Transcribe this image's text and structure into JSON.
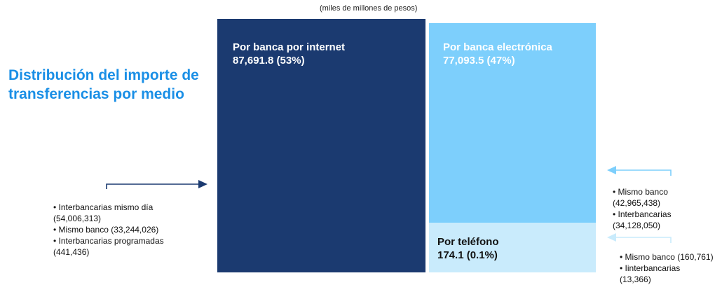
{
  "chart_data": {
    "type": "treemap",
    "title": "Distribución del importe de transferencias por medio",
    "subtitle": "(miles de millones de pesos)",
    "blocks": [
      {
        "key": "internet",
        "name": "Por banca por internet",
        "value": 87691.8,
        "value_label": "87,691.8",
        "share_label": "(53%)"
      },
      {
        "key": "electronica",
        "name": "Por banca electrónica",
        "value": 77093.5,
        "value_label": "77,093.5",
        "share_label": "(47%)"
      },
      {
        "key": "telefono",
        "name": "Por teléfono",
        "value": 174.1,
        "value_label": "174.1",
        "share_label": "(0.1%)"
      }
    ],
    "breakdowns": {
      "internet": [
        {
          "label": "Interbancarias mismo día",
          "value": 54006313,
          "display": "(54,006,313)"
        },
        {
          "label": "Mismo banco",
          "value": 33244026,
          "display": "(33,244,026)"
        },
        {
          "label": "Interbancarias programadas",
          "value": 441436,
          "display": "(441,436)"
        }
      ],
      "electronica": [
        {
          "label": "Mismo banco",
          "value": 42965438,
          "display": "(42,965,438)"
        },
        {
          "label": "Interbancarias",
          "value": 34128050,
          "display": "(34,128,050)"
        }
      ],
      "telefono": [
        {
          "label": "Mismo banco",
          "value": 160761,
          "display": "(160,761)"
        },
        {
          "label": "Iinterbancarias",
          "value": 13366,
          "display": "(13,366)"
        }
      ]
    },
    "colors": {
      "internet": "#1b3a70",
      "electronica": "#7dcffc",
      "telefono": "#c9ebfc",
      "title": "#1a8fe6"
    }
  },
  "text": {
    "title": "Distribución del importe de transferencias por medio",
    "subtitle": "(miles de millones de pesos)",
    "internet_name": "Por banca por internet",
    "internet_value": "87,691.8 (53%)",
    "electronica_name": "Por banca electrónica",
    "electronica_value": "77,093.5 (47%)",
    "telefono_name": "Por teléfono",
    "telefono_value": "174.1 (0.1%)",
    "left_notes": [
      "• Interbancarias mismo día",
      "(54,006,313)",
      "• Mismo banco (33,244,026)",
      "• Interbancarias programadas",
      "(441,436)"
    ],
    "right_notes_1": [
      "• Mismo banco",
      "(42,965,438)",
      "• Interbancarias",
      "(34,128,050)"
    ],
    "right_notes_2": [
      "• Mismo banco (160,761)",
      "• Iinterbancarias",
      "(13,366)"
    ]
  }
}
